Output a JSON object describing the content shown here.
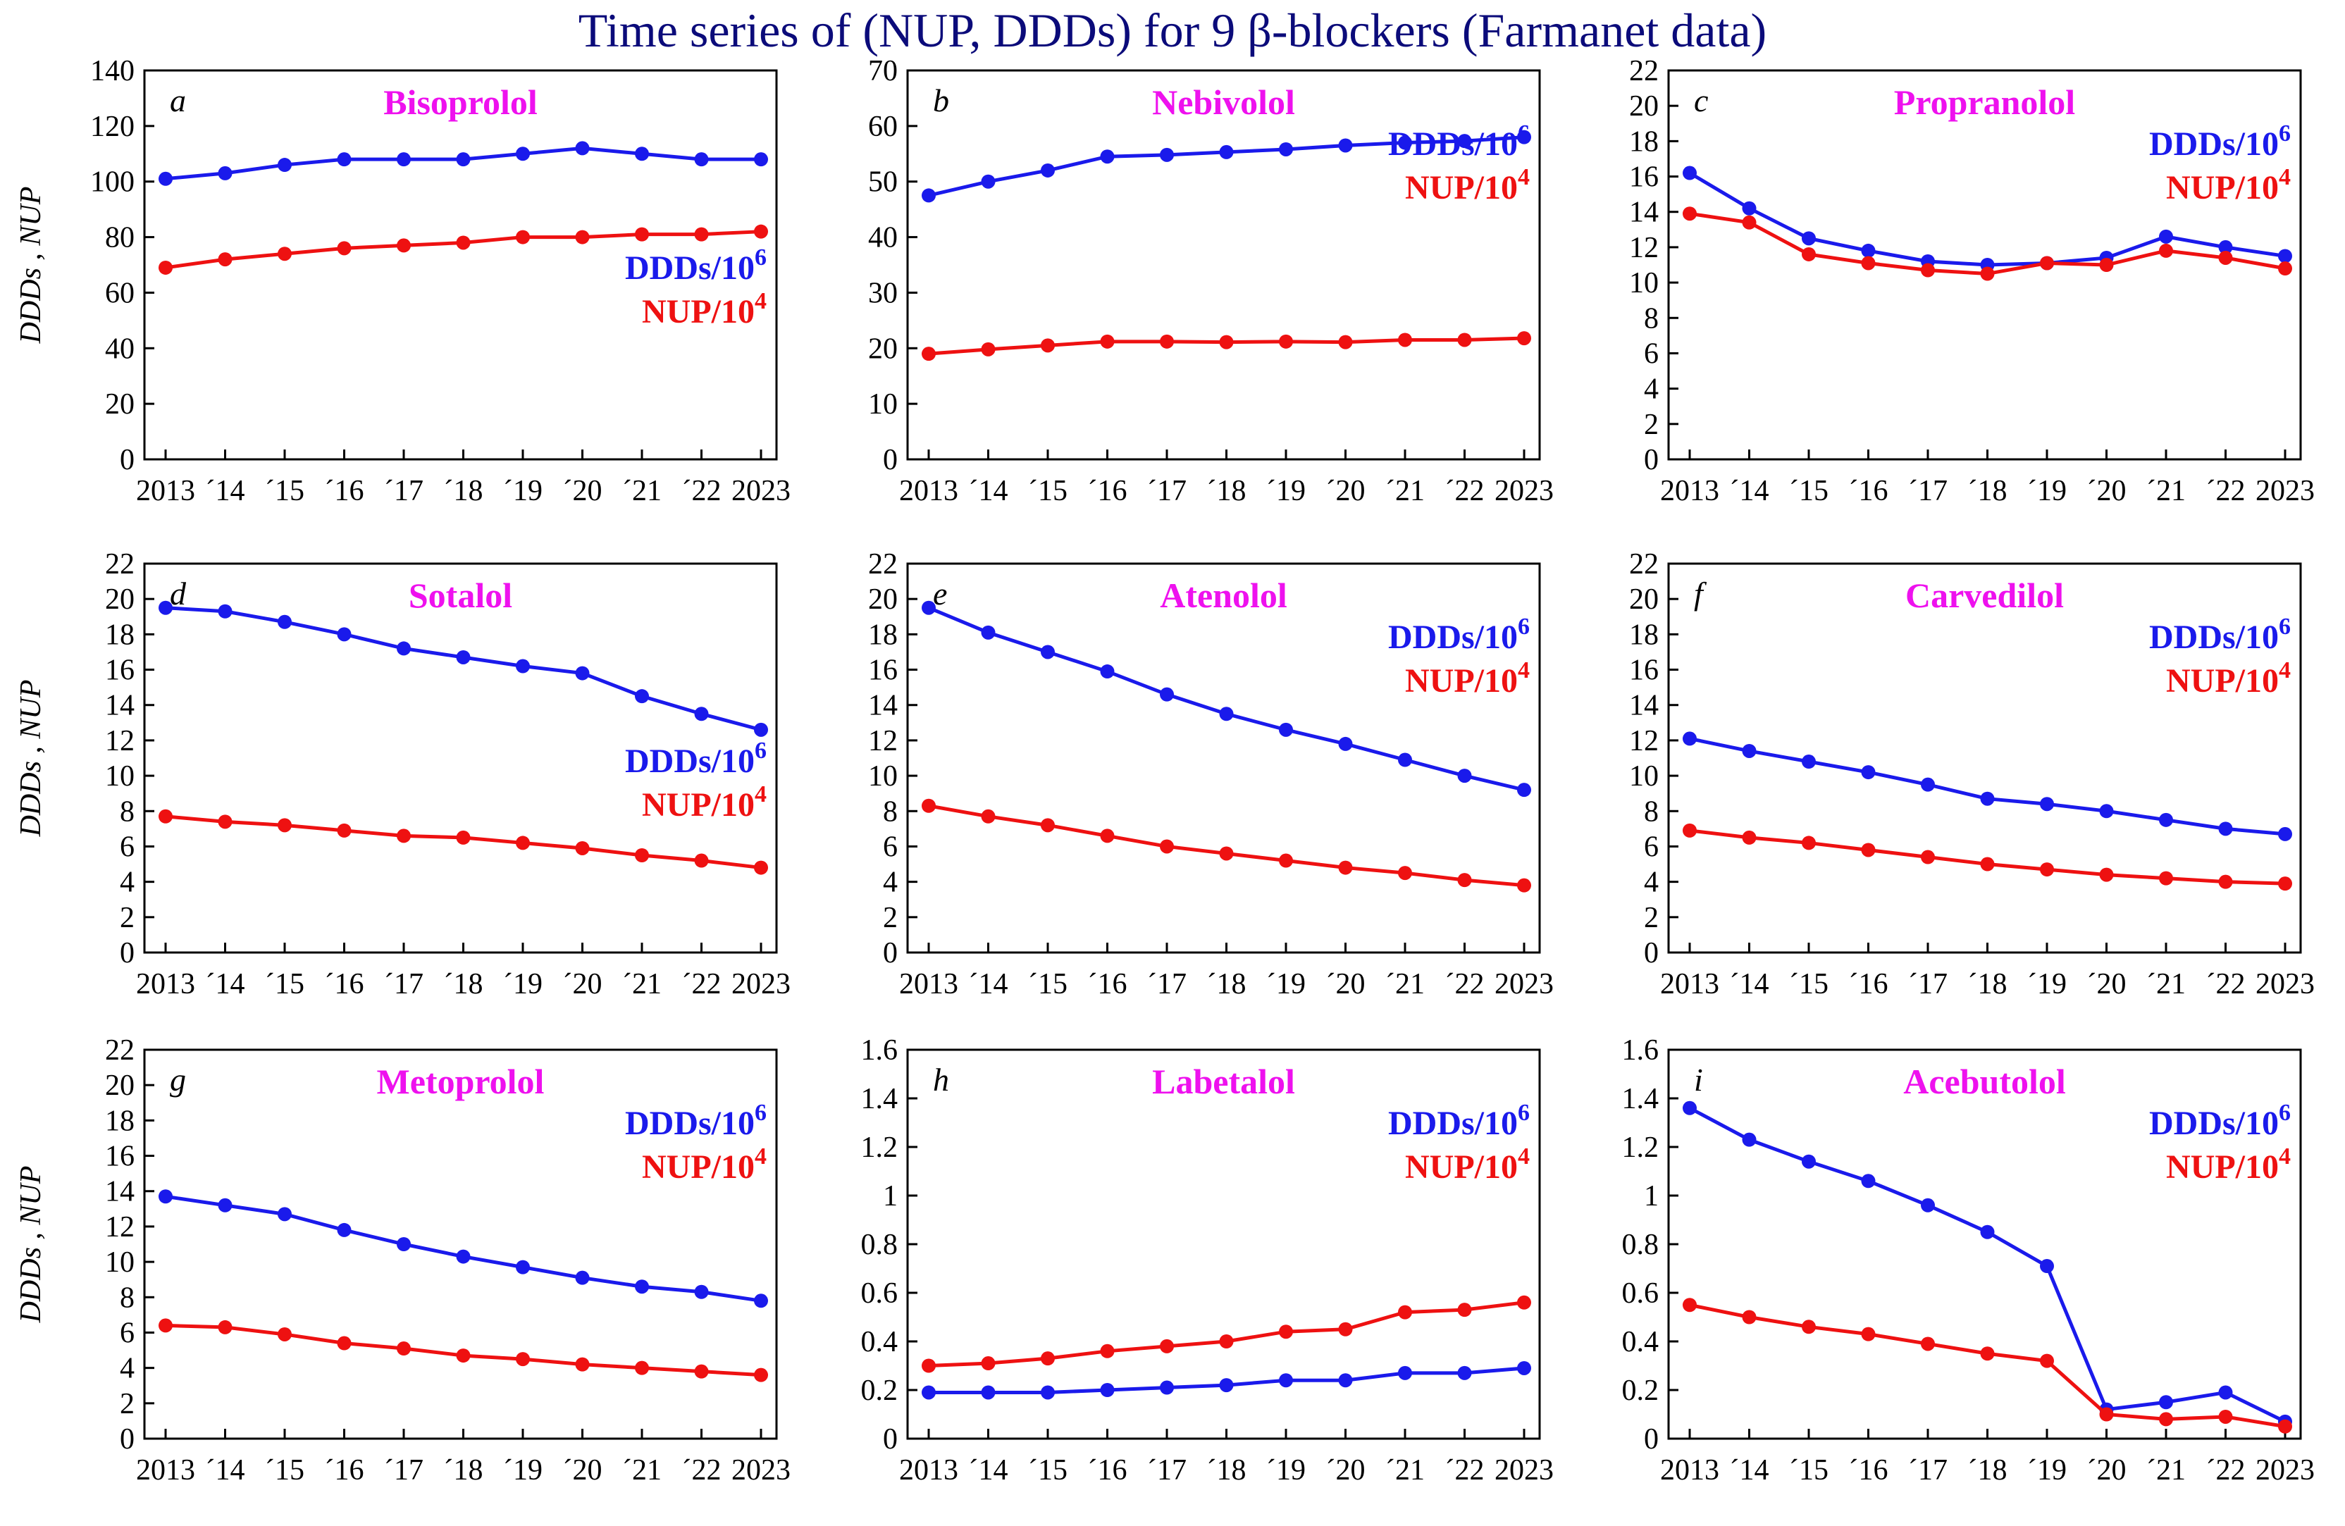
{
  "title": "Time series of (NUP, DDDs) for 9 β-blockers (Farmanet data)",
  "colors": {
    "ddd": "#1a1aeb",
    "nup": "#ee1111",
    "panel_title": "#ee11ee",
    "title": "#0b0b7a"
  },
  "common": {
    "xticks": [
      "2013",
      "´14",
      "´15",
      "´16",
      "´17",
      "´18",
      "´19",
      "´20",
      "´21",
      "´22",
      "2023"
    ],
    "ylabel": "DDDs , NUP",
    "ddd_label": "DDDs/10",
    "ddd_exp": "6",
    "nup_label": "NUP/10",
    "nup_exp": "4"
  },
  "chart_data": [
    {
      "type": "line",
      "letter": "a",
      "name": "Bisoprolol",
      "x": [
        2013,
        2014,
        2015,
        2016,
        2017,
        2018,
        2019,
        2020,
        2021,
        2022,
        2023
      ],
      "ylim": [
        0,
        140
      ],
      "yticks": [
        0,
        20,
        40,
        60,
        80,
        100,
        120,
        140
      ],
      "legend_pos": "middle-right",
      "series": [
        {
          "name": "DDDs/10^6",
          "values": [
            101,
            103,
            106,
            108,
            108,
            108,
            110,
            112,
            110,
            108,
            108
          ]
        },
        {
          "name": "NUP/10^4",
          "values": [
            69,
            72,
            74,
            76,
            77,
            78,
            80,
            80,
            81,
            81,
            82
          ]
        }
      ]
    },
    {
      "type": "line",
      "letter": "b",
      "name": "Nebivolol",
      "x": [
        2013,
        2014,
        2015,
        2016,
        2017,
        2018,
        2019,
        2020,
        2021,
        2022,
        2023
      ],
      "ylim": [
        0,
        70
      ],
      "yticks": [
        0,
        10,
        20,
        30,
        40,
        50,
        60,
        70
      ],
      "legend_pos": "upper-right",
      "series": [
        {
          "name": "DDDs/10^6",
          "values": [
            47.5,
            50,
            52,
            54.5,
            54.8,
            55.3,
            55.8,
            56.5,
            57,
            57.3,
            58
          ]
        },
        {
          "name": "NUP/10^4",
          "values": [
            19,
            19.8,
            20.5,
            21.2,
            21.2,
            21.1,
            21.2,
            21.1,
            21.5,
            21.5,
            21.8
          ]
        }
      ]
    },
    {
      "type": "line",
      "letter": "c",
      "name": "Propranolol",
      "x": [
        2013,
        2014,
        2015,
        2016,
        2017,
        2018,
        2019,
        2020,
        2021,
        2022,
        2023
      ],
      "ylim": [
        0,
        22
      ],
      "yticks": [
        0,
        2,
        4,
        6,
        8,
        10,
        12,
        14,
        16,
        18,
        20,
        22
      ],
      "legend_pos": "upper-right",
      "series": [
        {
          "name": "DDDs/10^6",
          "values": [
            16.2,
            14.2,
            12.5,
            11.8,
            11.2,
            11.0,
            11.1,
            11.4,
            12.6,
            12.0,
            11.5
          ]
        },
        {
          "name": "NUP/10^4",
          "values": [
            13.9,
            13.4,
            11.6,
            11.1,
            10.7,
            10.5,
            11.1,
            11.0,
            11.8,
            11.4,
            10.8
          ]
        }
      ]
    },
    {
      "type": "line",
      "letter": "d",
      "name": "Sotalol",
      "x": [
        2013,
        2014,
        2015,
        2016,
        2017,
        2018,
        2019,
        2020,
        2021,
        2022,
        2023
      ],
      "ylim": [
        0,
        22
      ],
      "yticks": [
        0,
        2,
        4,
        6,
        8,
        10,
        12,
        14,
        16,
        18,
        20,
        22
      ],
      "legend_pos": "middle-right",
      "series": [
        {
          "name": "DDDs/10^6",
          "values": [
            19.5,
            19.3,
            18.7,
            18.0,
            17.2,
            16.7,
            16.2,
            15.8,
            14.5,
            13.5,
            12.6
          ]
        },
        {
          "name": "NUP/10^4",
          "values": [
            7.7,
            7.4,
            7.2,
            6.9,
            6.6,
            6.5,
            6.2,
            5.9,
            5.5,
            5.2,
            4.8
          ]
        }
      ]
    },
    {
      "type": "line",
      "letter": "e",
      "name": "Atenolol",
      "x": [
        2013,
        2014,
        2015,
        2016,
        2017,
        2018,
        2019,
        2020,
        2021,
        2022,
        2023
      ],
      "ylim": [
        0,
        22
      ],
      "yticks": [
        0,
        2,
        4,
        6,
        8,
        10,
        12,
        14,
        16,
        18,
        20,
        22
      ],
      "legend_pos": "upper-right",
      "series": [
        {
          "name": "DDDs/10^6",
          "values": [
            19.5,
            18.1,
            17.0,
            15.9,
            14.6,
            13.5,
            12.6,
            11.8,
            10.9,
            10.0,
            9.2
          ]
        },
        {
          "name": "NUP/10^4",
          "values": [
            8.3,
            7.7,
            7.2,
            6.6,
            6.0,
            5.6,
            5.2,
            4.8,
            4.5,
            4.1,
            3.8
          ]
        }
      ]
    },
    {
      "type": "line",
      "letter": "f",
      "name": "Carvedilol",
      "x": [
        2013,
        2014,
        2015,
        2016,
        2017,
        2018,
        2019,
        2020,
        2021,
        2022,
        2023
      ],
      "ylim": [
        0,
        22
      ],
      "yticks": [
        0,
        2,
        4,
        6,
        8,
        10,
        12,
        14,
        16,
        18,
        20,
        22
      ],
      "legend_pos": "upper-right",
      "series": [
        {
          "name": "DDDs/10^6",
          "values": [
            12.1,
            11.4,
            10.8,
            10.2,
            9.5,
            8.7,
            8.4,
            8.0,
            7.5,
            7.0,
            6.7
          ]
        },
        {
          "name": "NUP/10^4",
          "values": [
            6.9,
            6.5,
            6.2,
            5.8,
            5.4,
            5.0,
            4.7,
            4.4,
            4.2,
            4.0,
            3.9
          ]
        }
      ]
    },
    {
      "type": "line",
      "letter": "g",
      "name": "Metoprolol",
      "x": [
        2013,
        2014,
        2015,
        2016,
        2017,
        2018,
        2019,
        2020,
        2021,
        2022,
        2023
      ],
      "ylim": [
        0,
        22
      ],
      "yticks": [
        0,
        2,
        4,
        6,
        8,
        10,
        12,
        14,
        16,
        18,
        20,
        22
      ],
      "legend_pos": "upper-right",
      "series": [
        {
          "name": "DDDs/10^6",
          "values": [
            13.7,
            13.2,
            12.7,
            11.8,
            11.0,
            10.3,
            9.7,
            9.1,
            8.6,
            8.3,
            7.8
          ]
        },
        {
          "name": "NUP/10^4",
          "values": [
            6.4,
            6.3,
            5.9,
            5.4,
            5.1,
            4.7,
            4.5,
            4.2,
            4.0,
            3.8,
            3.6
          ]
        }
      ]
    },
    {
      "type": "line",
      "letter": "h",
      "name": "Labetalol",
      "x": [
        2013,
        2014,
        2015,
        2016,
        2017,
        2018,
        2019,
        2020,
        2021,
        2022,
        2023
      ],
      "ylim": [
        0,
        1.6
      ],
      "yticks": [
        0,
        0.2,
        0.4,
        0.6,
        0.8,
        1,
        1.2,
        1.4,
        1.6
      ],
      "legend_pos": "upper-right",
      "series": [
        {
          "name": "DDDs/10^6",
          "values": [
            0.19,
            0.19,
            0.19,
            0.2,
            0.21,
            0.22,
            0.24,
            0.24,
            0.27,
            0.27,
            0.29
          ]
        },
        {
          "name": "NUP/10^4",
          "values": [
            0.3,
            0.31,
            0.33,
            0.36,
            0.38,
            0.4,
            0.44,
            0.45,
            0.52,
            0.53,
            0.56
          ]
        }
      ]
    },
    {
      "type": "line",
      "letter": "i",
      "name": "Acebutolol",
      "x": [
        2013,
        2014,
        2015,
        2016,
        2017,
        2018,
        2019,
        2020,
        2021,
        2022,
        2023
      ],
      "ylim": [
        0,
        1.6
      ],
      "yticks": [
        0,
        0.2,
        0.4,
        0.6,
        0.8,
        1,
        1.2,
        1.4,
        1.6
      ],
      "legend_pos": "upper-right",
      "series": [
        {
          "name": "DDDs/10^6",
          "values": [
            1.36,
            1.23,
            1.14,
            1.06,
            0.96,
            0.85,
            0.71,
            0.12,
            0.15,
            0.19,
            0.07
          ]
        },
        {
          "name": "NUP/10^4",
          "values": [
            0.55,
            0.5,
            0.46,
            0.43,
            0.39,
            0.35,
            0.32,
            0.1,
            0.08,
            0.09,
            0.05
          ]
        }
      ]
    }
  ]
}
